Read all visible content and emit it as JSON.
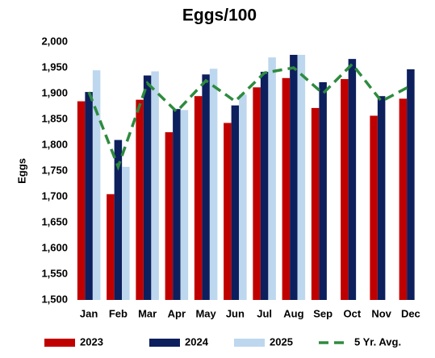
{
  "chart_data": {
    "type": "bar",
    "title": "Eggs/100",
    "y_label": "Eggs",
    "categories": [
      "Jan",
      "Feb",
      "Mar",
      "Apr",
      "May",
      "Jun",
      "Jul",
      "Aug",
      "Sep",
      "Oct",
      "Nov",
      "Dec"
    ],
    "series": [
      {
        "name": "2023",
        "type": "bar",
        "color": "#c00000",
        "values": [
          1885,
          1705,
          1888,
          1825,
          1895,
          1843,
          1912,
          1930,
          1872,
          1928,
          1857,
          1890
        ]
      },
      {
        "name": "2024",
        "type": "bar",
        "color": "#0d1f5c",
        "values": [
          1903,
          1810,
          1935,
          1870,
          1937,
          1877,
          1942,
          1975,
          1922,
          1967,
          1895,
          1947
        ]
      },
      {
        "name": "2025",
        "type": "bar",
        "color": "#bdd7ee",
        "values": [
          1945,
          1758,
          1943,
          1868,
          1948,
          1898,
          1970,
          1975,
          null,
          null,
          null,
          null
        ]
      },
      {
        "name": "5 Yr. Avg.",
        "type": "line",
        "color": "#2e8b3e",
        "values": [
          1903,
          1758,
          1920,
          1865,
          1925,
          1885,
          1940,
          1950,
          1900,
          1957,
          1885,
          1915
        ]
      }
    ],
    "ylim": [
      1500,
      2000
    ],
    "yticks": [
      {
        "value": 1500,
        "label": "1,500"
      },
      {
        "value": 1550,
        "label": "1,550"
      },
      {
        "value": 1600,
        "label": "1,600"
      },
      {
        "value": 1650,
        "label": "1,650"
      },
      {
        "value": 1700,
        "label": "1,700"
      },
      {
        "value": 1750,
        "label": "1,750"
      },
      {
        "value": 1800,
        "label": "1,800"
      },
      {
        "value": 1850,
        "label": "1,850"
      },
      {
        "value": 1900,
        "label": "1,900"
      },
      {
        "value": 1950,
        "label": "1,950"
      },
      {
        "value": 2000,
        "label": "2,000"
      }
    ],
    "legend": "bottom"
  }
}
